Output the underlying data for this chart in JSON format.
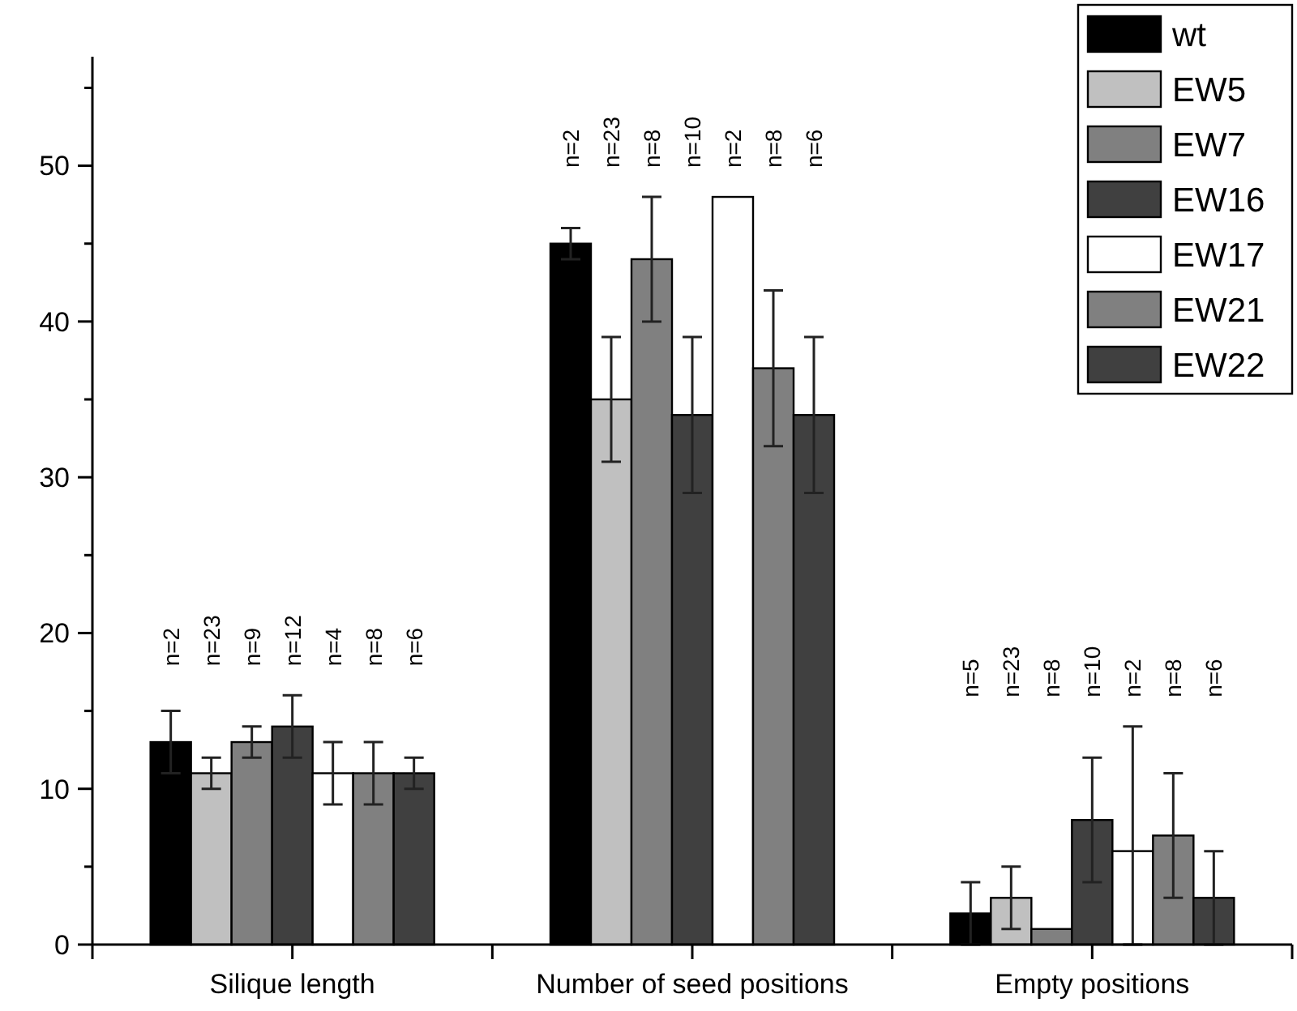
{
  "chart_data": {
    "type": "bar",
    "categories": [
      "Silique length",
      "Number of seed positions",
      "Empty positions"
    ],
    "series": [
      {
        "name": "wt",
        "color": "#000000",
        "values": [
          13,
          45,
          2
        ],
        "errors": [
          2,
          1,
          2
        ]
      },
      {
        "name": "EW5",
        "color": "#c0c0c0",
        "values": [
          11,
          35,
          3
        ],
        "errors": [
          1,
          4,
          2
        ]
      },
      {
        "name": "EW7",
        "color": "#808080",
        "values": [
          13,
          44,
          1
        ],
        "errors": [
          1,
          4,
          null
        ]
      },
      {
        "name": "EW16",
        "color": "#404040",
        "values": [
          14,
          34,
          8
        ],
        "errors": [
          2,
          5,
          4
        ]
      },
      {
        "name": "EW17",
        "color": "#ffffff",
        "values": [
          11,
          48,
          6
        ],
        "errors": [
          2,
          null,
          [
            0,
            14
          ]
        ]
      },
      {
        "name": "EW21",
        "color": "#808080",
        "values": [
          11,
          37,
          7
        ],
        "errors": [
          2,
          5,
          4
        ]
      },
      {
        "name": "EW22",
        "color": "#404040",
        "values": [
          11,
          34,
          3
        ],
        "errors": [
          1,
          5,
          3
        ]
      }
    ],
    "annotations": [
      "n=2",
      "n=23",
      "n=9",
      "n=12",
      "n=4",
      "n=8",
      "n=6",
      "n=2",
      "n=23",
      "n=8",
      "n=10",
      "n=2",
      "n=8",
      "n=6",
      "n=5",
      "n=23",
      "n=8",
      "n=10",
      "n=2",
      "n=8",
      "n=6"
    ],
    "ylim": [
      0,
      57
    ],
    "yticks": [
      0,
      {
        "value": 5,
        "label": null
      },
      10,
      {
        "value": 15,
        "label": null
      },
      20,
      {
        "value": 25,
        "label": null
      },
      30,
      {
        "value": 35,
        "label": null
      },
      40,
      {
        "value": 45,
        "label": null
      },
      50,
      {
        "value": 55,
        "label": null
      }
    ],
    "legend": "top right",
    "grid": false
  }
}
